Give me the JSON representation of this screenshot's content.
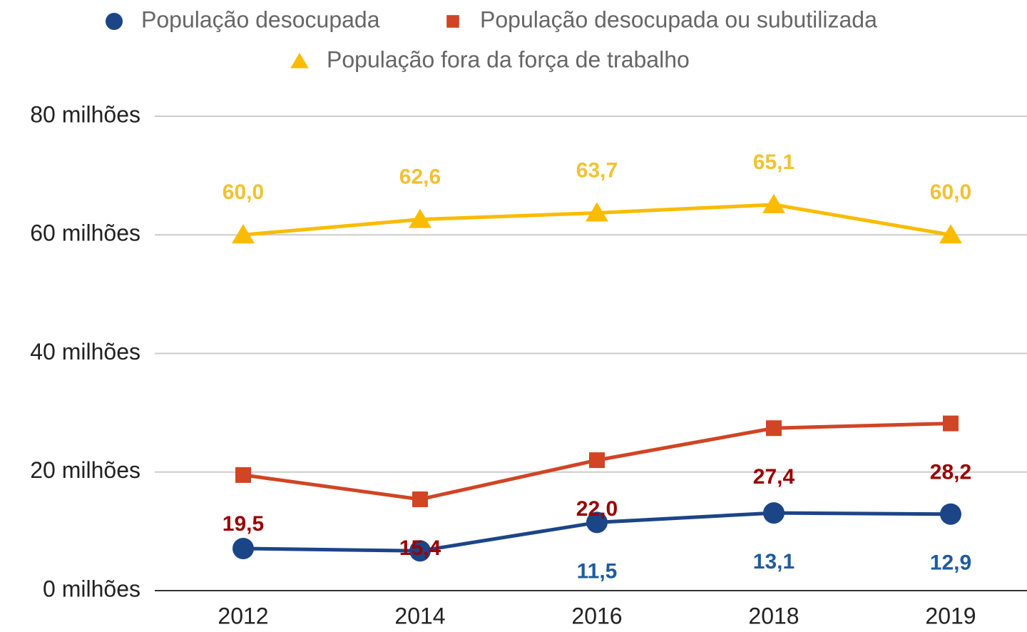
{
  "chart_data": {
    "type": "line",
    "categories": [
      "2012",
      "2014",
      "2016",
      "2018",
      "2019"
    ],
    "series": [
      {
        "name": "População desocupada",
        "color": "#1c4587",
        "label_color": "#1f5b9e",
        "marker": "circle",
        "values": [
          7.1,
          6.7,
          11.5,
          13.1,
          12.9
        ],
        "value_labels": [
          null,
          null,
          "11,5",
          "13,1",
          "12,9"
        ]
      },
      {
        "name": "População desocupada ou subutilizada",
        "color": "#d14424",
        "label_color": "#990000",
        "marker": "square",
        "values": [
          19.5,
          15.4,
          22.0,
          27.4,
          28.2
        ],
        "value_labels": [
          "19,5",
          "15,4",
          "22,0",
          "27,4",
          "28,2"
        ]
      },
      {
        "name": "População fora da força de trabalho",
        "color": "#f9bc02",
        "label_color": "#f1c232",
        "marker": "triangle",
        "values": [
          60.0,
          62.6,
          63.7,
          65.1,
          60.0
        ],
        "value_labels": [
          "60,0",
          "62,6",
          "63,7",
          "65,1",
          "60,0"
        ]
      }
    ],
    "ylim": [
      0,
      80
    ],
    "yticks": [
      {
        "value": 0,
        "label": "0 milhões"
      },
      {
        "value": 20,
        "label": "20 milhões"
      },
      {
        "value": 40,
        "label": "40 milhões"
      },
      {
        "value": 60,
        "label": "60 milhões"
      },
      {
        "value": 80,
        "label": "80 milhões"
      }
    ],
    "grid": true,
    "legend": "top"
  }
}
